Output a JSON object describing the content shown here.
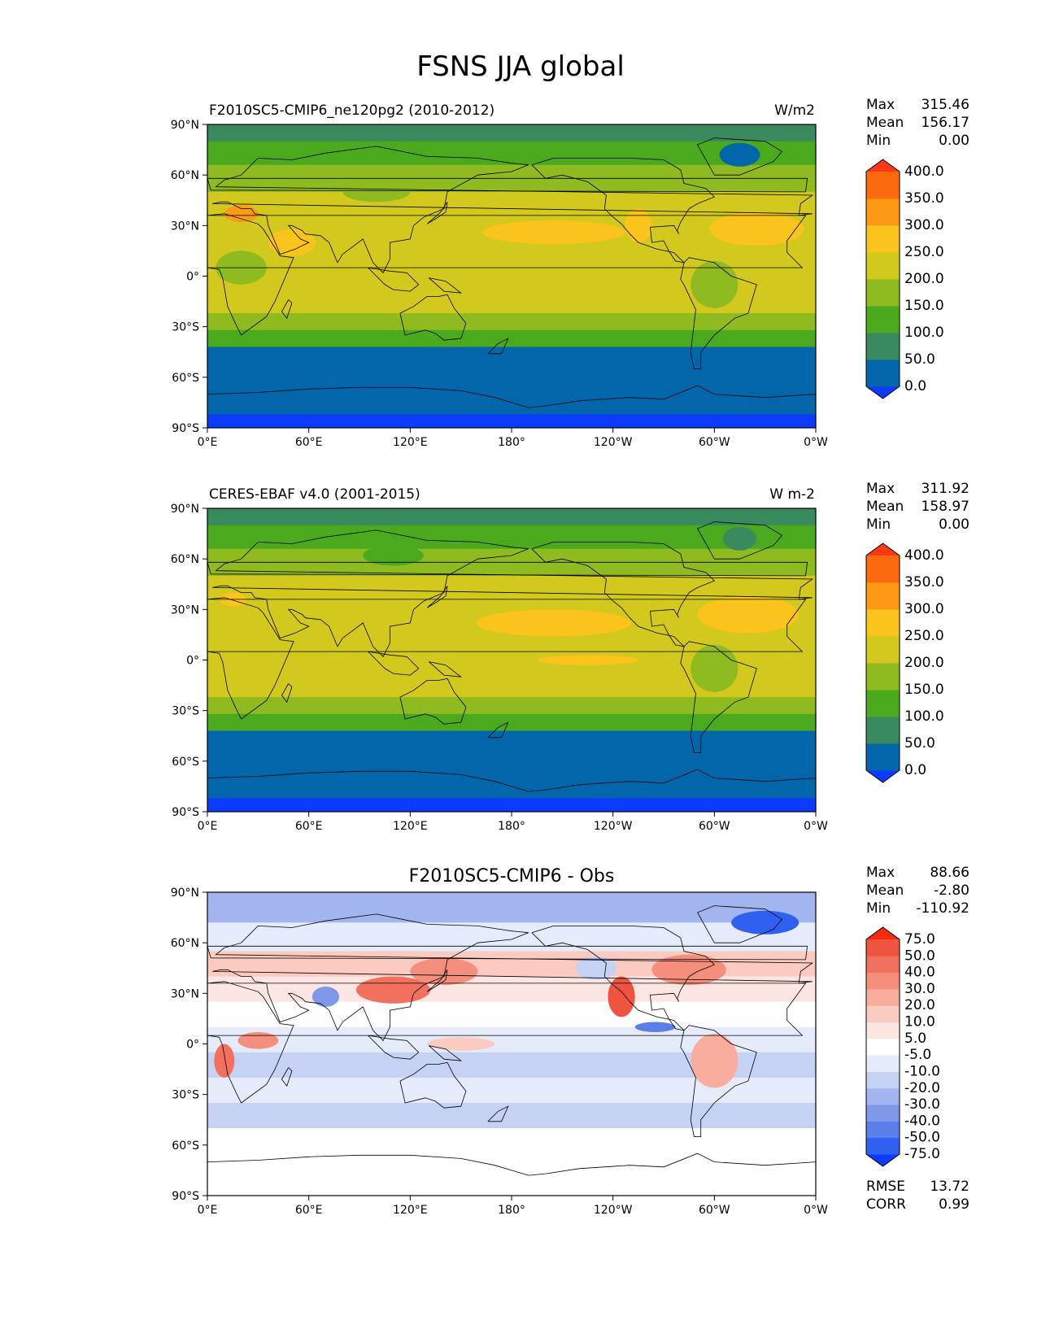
{
  "figure_title": "FSNS JJA global",
  "axes": {
    "lat_ticks": [
      "90°N",
      "60°N",
      "30°N",
      "0°",
      "30°S",
      "60°S",
      "90°S"
    ],
    "lon_ticks": [
      "0°E",
      "60°E",
      "120°E",
      "180°",
      "120°W",
      "60°W",
      "0°W"
    ]
  },
  "colors": {
    "abs_levels": [
      "#0b3bff",
      "#0466aa",
      "#3a8a60",
      "#4aa91c",
      "#8fba20",
      "#d2c81e",
      "#fbc41c",
      "#fc9a16",
      "#fc6a10",
      "#fc3816"
    ],
    "diff_levels": [
      "#0b3bff",
      "#3060f0",
      "#5a7fe8",
      "#7f98ea",
      "#a3b5ef",
      "#c5d2f4",
      "#e5ebfa",
      "#ffffff",
      "#fde6e1",
      "#fbcbc1",
      "#f8ad9f",
      "#f58f7d",
      "#f2715e",
      "#ef5440",
      "#f72a10"
    ]
  },
  "chart_data": [
    {
      "type": "heatmap",
      "left_title": "F2010SC5-CMIP6_ne120pg2 (2010-2012)",
      "right_title": "W/m2",
      "stats": [
        {
          "label": "Max",
          "value": "315.46"
        },
        {
          "label": "Mean",
          "value": "156.17"
        },
        {
          "label": "Min",
          "value": "0.00"
        }
      ],
      "colorbar_ticks": [
        "400.0",
        "350.0",
        "300.0",
        "250.0",
        "200.0",
        "150.0",
        "100.0",
        "50.0",
        "0.0"
      ],
      "xlim": [
        0,
        360
      ],
      "ylim": [
        -90,
        90
      ]
    },
    {
      "type": "heatmap",
      "left_title": "CERES-EBAF v4.0 (2001-2015)",
      "right_title": "W m-2",
      "stats": [
        {
          "label": "Max",
          "value": "311.92"
        },
        {
          "label": "Mean",
          "value": "158.97"
        },
        {
          "label": "Min",
          "value": "0.00"
        }
      ],
      "colorbar_ticks": [
        "400.0",
        "350.0",
        "300.0",
        "250.0",
        "200.0",
        "150.0",
        "100.0",
        "50.0",
        "0.0"
      ],
      "xlim": [
        0,
        360
      ],
      "ylim": [
        -90,
        90
      ]
    },
    {
      "type": "heatmap",
      "center_title": "F2010SC5-CMIP6 - Obs",
      "stats": [
        {
          "label": "Max",
          "value": "88.66"
        },
        {
          "label": "Mean",
          "value": "-2.80"
        },
        {
          "label": "Min",
          "value": "-110.92"
        }
      ],
      "colorbar_ticks": [
        "75.0",
        "50.0",
        "40.0",
        "30.0",
        "20.0",
        "10.0",
        "5.0",
        "-5.0",
        "-10.0",
        "-20.0",
        "-30.0",
        "-40.0",
        "-50.0",
        "-75.0"
      ],
      "metrics": [
        {
          "label": "RMSE",
          "value": "13.72"
        },
        {
          "label": "CORR",
          "value": "0.99"
        }
      ],
      "xlim": [
        0,
        360
      ],
      "ylim": [
        -90,
        90
      ]
    }
  ]
}
